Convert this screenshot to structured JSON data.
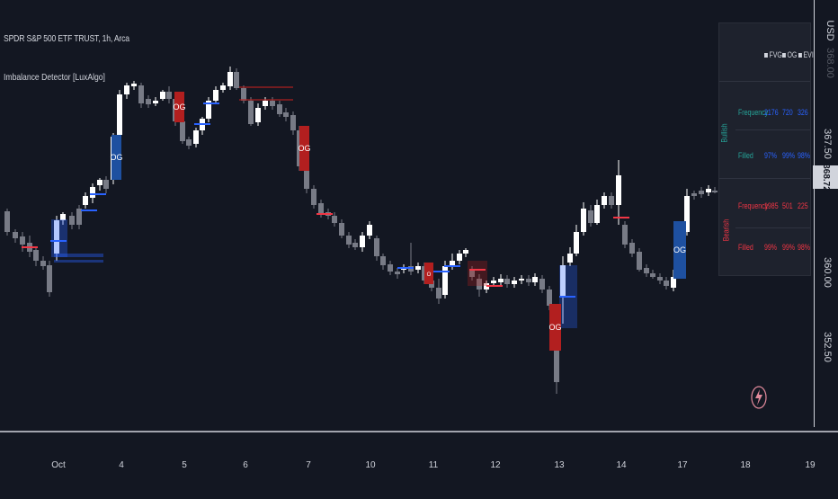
{
  "legend": {
    "symbol": "SPDR S&P 500 ETF TRUST, 1h, Arca",
    "indicator": "Imbalance Detector [LuxAlgo]"
  },
  "price_axis": {
    "currency": "USD",
    "labels": [
      "367.50",
      "360.00",
      "352.50"
    ],
    "faint_label": "368.00",
    "current_price": "368.72"
  },
  "time_axis": {
    "labels": [
      "Oct",
      "4",
      "5",
      "6",
      "7",
      "10",
      "11",
      "12",
      "13",
      "14",
      "17",
      "18",
      "19"
    ]
  },
  "chart_labels": {
    "og": "OG",
    "fvg": "FVG"
  },
  "stats_table": {
    "header": [
      "FVG",
      "OG",
      "EVI"
    ],
    "bullish_label": "Bullish",
    "bearish_label": "Bearish",
    "rows": [
      {
        "metric": "Frequency",
        "values": [
          "2176",
          "720",
          "326"
        ]
      },
      {
        "metric": "Filled",
        "values": [
          "97%",
          "99%",
          "98%"
        ]
      },
      {
        "metric": "Frequency",
        "values": [
          "1985",
          "501",
          "225"
        ]
      },
      {
        "metric": "Filled",
        "values": [
          "99%",
          "99%",
          "98%"
        ]
      }
    ]
  },
  "colors": {
    "background": "#131722",
    "bull_candle": "#ffffff",
    "bear_candle": "#787b86",
    "bull_label": "#1e50a0",
    "bear_label": "#b21f1f",
    "bull_text": "#26a69a",
    "bull_values": "#2962ff",
    "bear_text": "#f23645"
  },
  "icons": {
    "lightning": "lightning-icon"
  }
}
